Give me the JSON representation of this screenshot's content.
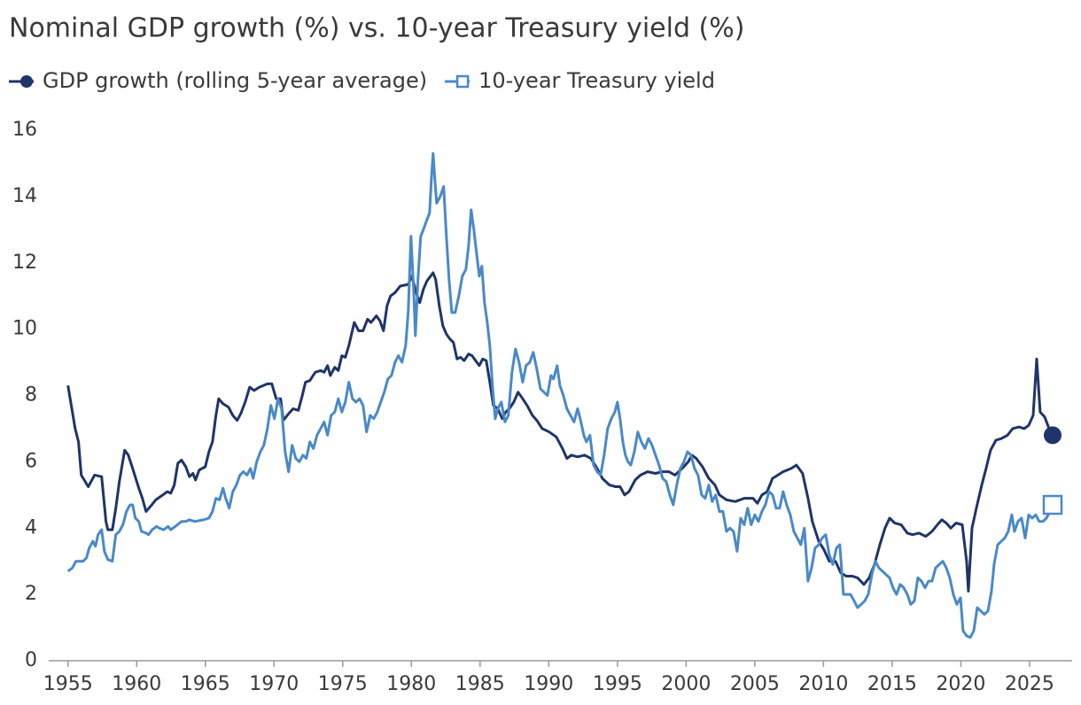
{
  "chart_data": {
    "type": "line",
    "title": "Nominal GDP growth (%) vs. 10-year Treasury yield (%)",
    "xlim": [
      1953.6,
      2028.1
    ],
    "xticks": [
      1955,
      1960,
      1965,
      1970,
      1975,
      1980,
      1985,
      1990,
      1995,
      2000,
      2005,
      2010,
      2015,
      2020,
      2025
    ],
    "ylim": [
      0,
      16
    ],
    "yticks": [
      0,
      2,
      4,
      6,
      8,
      10,
      12,
      14,
      16
    ],
    "grid": false,
    "legend": "top-left",
    "series": [
      {
        "name": "GDP growth (rolling 5-year average)",
        "color": "#1f3468",
        "marker": "circle",
        "x": [
          1955.0,
          1955.52,
          1955.77,
          1955.97,
          1956.48,
          1956.94,
          1957.45,
          1957.77,
          1957.9,
          1958.23,
          1958.48,
          1958.74,
          1959.13,
          1959.39,
          1959.71,
          1960.16,
          1960.42,
          1960.68,
          1961.0,
          1961.39,
          1961.9,
          1962.23,
          1962.48,
          1962.74,
          1963.0,
          1963.26,
          1963.58,
          1963.84,
          1964.1,
          1964.29,
          1964.55,
          1965.0,
          1965.26,
          1965.52,
          1965.77,
          1965.97,
          1966.29,
          1966.68,
          1967.0,
          1967.32,
          1967.58,
          1967.9,
          1968.23,
          1968.55,
          1968.94,
          1969.52,
          1969.84,
          1970.16,
          1970.48,
          1970.68,
          1971.06,
          1971.39,
          1971.77,
          1972.03,
          1972.29,
          1972.61,
          1973.0,
          1973.39,
          1973.65,
          1973.9,
          1974.1,
          1974.42,
          1974.68,
          1974.94,
          1975.19,
          1975.45,
          1975.84,
          1976.16,
          1976.48,
          1976.81,
          1977.06,
          1977.45,
          1977.71,
          1977.97,
          1978.23,
          1978.48,
          1978.81,
          1979.19,
          1979.77,
          1980.03,
          1980.35,
          1980.61,
          1980.87,
          1981.13,
          1981.58,
          1981.77,
          1982.03,
          1982.29,
          1982.55,
          1982.81,
          1983.06,
          1983.32,
          1983.58,
          1983.84,
          1984.16,
          1984.42,
          1984.68,
          1984.94,
          1985.19,
          1985.45,
          1985.71,
          1985.97,
          1986.29,
          1986.61,
          1986.87,
          1987.13,
          1987.45,
          1987.77,
          1988.1,
          1988.42,
          1988.81,
          1989.13,
          1989.52,
          1990.03,
          1990.55,
          1991.0,
          1991.32,
          1991.65,
          1992.1,
          1992.61,
          1993.06,
          1993.52,
          1993.9,
          1994.42,
          1994.87,
          1995.19,
          1995.52,
          1995.84,
          1996.29,
          1996.68,
          1997.19,
          1997.77,
          1998.29,
          1998.74,
          1999.19,
          1999.71,
          2000.16,
          2000.42,
          2000.74,
          2001.19,
          2001.65,
          2002.1,
          2002.42,
          2002.94,
          2003.58,
          2004.23,
          2004.87,
          2005.19,
          2005.52,
          2005.9,
          2006.29,
          2006.68,
          2007.06,
          2007.65,
          2008.03,
          2008.48,
          2008.87,
          2009.19,
          2009.65,
          2010.03,
          2010.42,
          2010.87,
          2011.26,
          2011.65,
          2012.1,
          2012.48,
          2012.94,
          2013.32,
          2013.71,
          2014.1,
          2014.48,
          2014.81,
          2015.19,
          2015.65,
          2016.1,
          2016.48,
          2016.94,
          2017.45,
          2017.9,
          2018.29,
          2018.61,
          2018.94,
          2019.26,
          2019.65,
          2020.1,
          2020.42,
          2020.55,
          2020.81,
          2021.13,
          2021.52,
          2021.84,
          2022.16,
          2022.55,
          2022.94,
          2023.39,
          2023.77,
          2024.23,
          2024.61,
          2024.94,
          2025.26,
          2025.52,
          2025.77,
          2026.1,
          2026.42,
          2026.68
        ],
        "values": [
          8.3,
          7.0,
          6.6,
          5.6,
          5.25,
          5.6,
          5.55,
          4.2,
          3.95,
          3.95,
          4.6,
          5.4,
          6.35,
          6.2,
          5.8,
          5.2,
          4.9,
          4.5,
          4.65,
          4.85,
          5.0,
          5.1,
          5.05,
          5.3,
          5.95,
          6.05,
          5.85,
          5.55,
          5.65,
          5.45,
          5.75,
          5.85,
          6.3,
          6.6,
          7.4,
          7.9,
          7.75,
          7.65,
          7.4,
          7.25,
          7.45,
          7.8,
          8.25,
          8.15,
          8.25,
          8.35,
          8.35,
          7.9,
          7.9,
          7.25,
          7.45,
          7.6,
          7.55,
          7.95,
          8.4,
          8.45,
          8.7,
          8.75,
          8.7,
          8.9,
          8.6,
          8.85,
          8.75,
          9.2,
          9.15,
          9.5,
          10.2,
          9.95,
          9.95,
          10.3,
          10.2,
          10.4,
          10.25,
          9.95,
          10.7,
          11.0,
          11.1,
          11.3,
          11.35,
          11.6,
          11.1,
          10.8,
          11.2,
          11.45,
          11.7,
          11.5,
          10.7,
          10.1,
          9.85,
          9.7,
          9.6,
          9.1,
          9.15,
          9.05,
          9.25,
          9.2,
          9.05,
          8.9,
          9.1,
          9.05,
          8.4,
          7.7,
          7.6,
          7.3,
          7.5,
          7.6,
          7.8,
          8.1,
          7.9,
          7.7,
          7.4,
          7.25,
          7.0,
          6.9,
          6.75,
          6.4,
          6.1,
          6.2,
          6.15,
          6.2,
          6.1,
          5.8,
          5.5,
          5.3,
          5.25,
          5.25,
          5.0,
          5.1,
          5.45,
          5.6,
          5.7,
          5.65,
          5.7,
          5.7,
          5.6,
          5.8,
          6.0,
          6.2,
          6.1,
          5.85,
          5.5,
          5.3,
          5.0,
          4.85,
          4.8,
          4.9,
          4.9,
          4.75,
          5.0,
          5.1,
          5.5,
          5.6,
          5.7,
          5.8,
          5.9,
          5.65,
          4.9,
          4.2,
          3.6,
          3.35,
          3.0,
          3.0,
          2.65,
          2.55,
          2.55,
          2.5,
          2.3,
          2.5,
          2.9,
          3.5,
          4.0,
          4.3,
          4.15,
          4.1,
          3.85,
          3.8,
          3.85,
          3.75,
          3.9,
          4.1,
          4.25,
          4.15,
          4.0,
          4.15,
          4.1,
          3.0,
          2.1,
          4.0,
          4.6,
          5.3,
          5.8,
          6.35,
          6.65,
          6.7,
          6.8,
          7.0,
          7.05,
          7.0,
          7.1,
          7.4,
          9.1,
          7.5,
          7.35,
          7.0,
          6.8
        ]
      },
      {
        "name": "10-year Treasury yield",
        "color": "#4a89c8",
        "marker": "square",
        "x": [
          1955.0,
          1955.32,
          1955.58,
          1956.1,
          1956.35,
          1956.55,
          1956.81,
          1957.0,
          1957.19,
          1957.45,
          1957.65,
          1957.9,
          1958.23,
          1958.48,
          1958.74,
          1959.0,
          1959.26,
          1959.52,
          1959.71,
          1959.9,
          1960.16,
          1960.35,
          1960.68,
          1960.87,
          1961.13,
          1961.45,
          1961.65,
          1961.97,
          1962.29,
          1962.48,
          1962.81,
          1963.26,
          1963.58,
          1963.84,
          1964.23,
          1964.87,
          1965.26,
          1965.52,
          1965.77,
          1966.03,
          1966.29,
          1966.48,
          1966.74,
          1967.0,
          1967.26,
          1967.52,
          1967.77,
          1968.03,
          1968.29,
          1968.48,
          1968.74,
          1969.0,
          1969.26,
          1969.52,
          1969.77,
          1970.03,
          1970.29,
          1970.55,
          1970.81,
          1971.06,
          1971.32,
          1971.58,
          1971.84,
          1972.1,
          1972.35,
          1972.61,
          1972.87,
          1973.13,
          1973.39,
          1973.65,
          1973.9,
          1974.16,
          1974.42,
          1974.68,
          1974.94,
          1975.19,
          1975.45,
          1975.71,
          1975.97,
          1976.23,
          1976.48,
          1976.74,
          1977.0,
          1977.26,
          1977.52,
          1977.77,
          1978.03,
          1978.29,
          1978.55,
          1978.81,
          1979.06,
          1979.32,
          1979.58,
          1979.77,
          1979.97,
          1980.16,
          1980.29,
          1980.48,
          1980.68,
          1980.87,
          1981.13,
          1981.32,
          1981.45,
          1981.58,
          1981.71,
          1981.84,
          1982.1,
          1982.35,
          1982.55,
          1982.74,
          1982.94,
          1983.19,
          1983.45,
          1983.71,
          1983.97,
          1984.16,
          1984.35,
          1984.55,
          1984.74,
          1984.94,
          1985.13,
          1985.32,
          1985.52,
          1985.71,
          1985.9,
          1986.1,
          1986.29,
          1986.55,
          1986.81,
          1987.06,
          1987.32,
          1987.58,
          1987.84,
          1988.1,
          1988.35,
          1988.61,
          1988.87,
          1989.13,
          1989.39,
          1989.65,
          1989.9,
          1990.16,
          1990.35,
          1990.61,
          1990.81,
          1991.06,
          1991.32,
          1991.58,
          1991.84,
          1992.1,
          1992.29,
          1992.55,
          1992.74,
          1993.0,
          1993.26,
          1993.52,
          1993.77,
          1994.03,
          1994.29,
          1994.55,
          1994.81,
          1995.0,
          1995.19,
          1995.39,
          1995.58,
          1995.77,
          1995.97,
          1996.23,
          1996.48,
          1996.74,
          1997.0,
          1997.26,
          1997.52,
          1997.77,
          1998.03,
          1998.29,
          1998.55,
          1998.81,
          1999.06,
          1999.32,
          1999.58,
          1999.84,
          2000.1,
          2000.35,
          2000.61,
          2000.87,
          2001.13,
          2001.39,
          2001.65,
          2001.9,
          2002.16,
          2002.42,
          2002.68,
          2002.94,
          2003.19,
          2003.45,
          2003.71,
          2003.97,
          2004.23,
          2004.48,
          2004.74,
          2005.0,
          2005.26,
          2005.52,
          2005.77,
          2006.03,
          2006.29,
          2006.55,
          2006.81,
          2007.06,
          2007.32,
          2007.58,
          2007.84,
          2008.1,
          2008.35,
          2008.61,
          2008.87,
          2009.13,
          2009.39,
          2009.65,
          2009.9,
          2010.16,
          2010.42,
          2010.68,
          2010.94,
          2011.19,
          2011.45,
          2011.71,
          2011.97,
          2012.23,
          2012.48,
          2012.74,
          2013.0,
          2013.26,
          2013.52,
          2013.77,
          2014.03,
          2014.29,
          2014.55,
          2014.81,
          2015.06,
          2015.32,
          2015.58,
          2015.84,
          2016.1,
          2016.35,
          2016.61,
          2016.87,
          2017.13,
          2017.39,
          2017.65,
          2017.9,
          2018.16,
          2018.42,
          2018.68,
          2018.94,
          2019.19,
          2019.45,
          2019.71,
          2019.97,
          2020.16,
          2020.42,
          2020.68,
          2020.94,
          2021.19,
          2021.45,
          2021.71,
          2021.97,
          2022.23,
          2022.42,
          2022.68,
          2022.94,
          2023.19,
          2023.45,
          2023.71,
          2023.9,
          2024.16,
          2024.42,
          2024.68,
          2024.94,
          2025.19,
          2025.45,
          2025.71,
          2025.97,
          2026.23,
          2026.48,
          2026.68
        ],
        "values": [
          2.7,
          2.8,
          3.0,
          3.0,
          3.1,
          3.4,
          3.6,
          3.45,
          3.8,
          3.95,
          3.3,
          3.05,
          3.0,
          3.8,
          3.9,
          4.1,
          4.5,
          4.7,
          4.7,
          4.3,
          4.2,
          3.9,
          3.85,
          3.8,
          3.95,
          4.05,
          4.0,
          3.95,
          4.05,
          3.95,
          4.05,
          4.2,
          4.2,
          4.25,
          4.2,
          4.25,
          4.3,
          4.5,
          4.9,
          4.85,
          5.2,
          4.9,
          4.6,
          5.1,
          5.3,
          5.6,
          5.7,
          5.6,
          5.8,
          5.5,
          6.0,
          6.3,
          6.5,
          7.0,
          7.7,
          7.3,
          7.9,
          7.6,
          6.3,
          5.7,
          6.5,
          6.1,
          6.0,
          6.2,
          6.1,
          6.6,
          6.4,
          6.8,
          7.0,
          7.2,
          6.8,
          7.4,
          7.5,
          7.9,
          7.5,
          7.8,
          8.4,
          7.9,
          7.8,
          7.9,
          7.7,
          6.9,
          7.4,
          7.3,
          7.5,
          7.8,
          8.1,
          8.5,
          8.6,
          9.0,
          9.2,
          9.0,
          9.5,
          10.5,
          12.8,
          11.2,
          9.8,
          11.5,
          12.8,
          13.0,
          13.3,
          13.5,
          14.5,
          15.3,
          14.5,
          13.8,
          14.0,
          14.3,
          12.8,
          11.5,
          10.5,
          10.5,
          11.0,
          11.6,
          11.8,
          12.5,
          13.6,
          13.0,
          12.3,
          11.6,
          11.9,
          10.8,
          10.2,
          9.5,
          8.3,
          7.3,
          7.6,
          7.8,
          7.2,
          7.4,
          8.7,
          9.4,
          9.0,
          8.4,
          8.9,
          9.0,
          9.3,
          8.8,
          8.2,
          8.1,
          8.0,
          8.6,
          8.5,
          8.9,
          8.3,
          8.0,
          7.6,
          7.4,
          7.2,
          7.6,
          7.3,
          6.8,
          6.6,
          6.8,
          5.9,
          5.7,
          5.6,
          6.2,
          7.0,
          7.3,
          7.5,
          7.8,
          7.3,
          6.6,
          6.2,
          6.0,
          5.9,
          6.3,
          6.9,
          6.6,
          6.4,
          6.7,
          6.5,
          6.2,
          5.9,
          5.5,
          5.4,
          5.0,
          4.7,
          5.3,
          5.8,
          6.0,
          6.3,
          6.2,
          5.8,
          5.6,
          5.0,
          4.9,
          5.3,
          4.8,
          5.0,
          4.5,
          4.5,
          3.9,
          4.0,
          3.9,
          3.3,
          4.3,
          4.1,
          4.6,
          4.1,
          4.4,
          4.2,
          4.5,
          4.7,
          5.1,
          5.0,
          4.6,
          4.6,
          5.1,
          4.7,
          4.4,
          3.9,
          3.7,
          3.5,
          4.0,
          2.4,
          2.8,
          3.4,
          3.5,
          3.7,
          3.8,
          3.2,
          2.9,
          3.4,
          3.5,
          2.0,
          2.0,
          2.0,
          1.8,
          1.6,
          1.7,
          1.8,
          2.0,
          2.6,
          3.0,
          2.8,
          2.7,
          2.6,
          2.5,
          2.2,
          2.0,
          2.3,
          2.2,
          2.0,
          1.7,
          1.8,
          2.5,
          2.4,
          2.2,
          2.4,
          2.4,
          2.8,
          2.9,
          3.0,
          2.8,
          2.5,
          2.0,
          1.7,
          1.9,
          0.9,
          0.75,
          0.7,
          0.9,
          1.6,
          1.5,
          1.4,
          1.5,
          2.1,
          2.9,
          3.5,
          3.6,
          3.7,
          3.9,
          4.4,
          3.9,
          4.2,
          4.3,
          3.7,
          4.4,
          4.3,
          4.4,
          4.2,
          4.2,
          4.3,
          4.5,
          4.7
        ]
      }
    ]
  }
}
